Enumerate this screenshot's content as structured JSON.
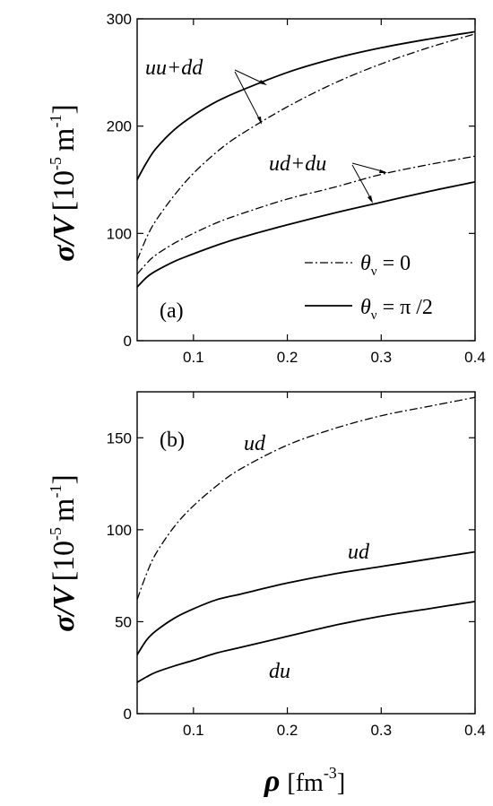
{
  "chart_data": [
    {
      "type": "line",
      "panel_label": "(a)",
      "xlim": [
        0.04,
        0.4
      ],
      "ylim": [
        0,
        300
      ],
      "x_ticks": [
        0.1,
        0.2,
        0.3,
        0.4
      ],
      "x_tick_labels": [
        "0.1",
        "0.2",
        "0.3",
        "0.4"
      ],
      "y_ticks": [
        0,
        100,
        200,
        300
      ],
      "y_tick_labels": [
        "0",
        "100",
        "200",
        "300"
      ],
      "ylabel": {
        "symbol": "σ/V",
        "bracket_open": "[",
        "power10": "10",
        "exp": "-5",
        "unit": "m",
        "unit_exp": "-1",
        "bracket_close": "]"
      },
      "legend": {
        "placement": "lower-right",
        "entries": [
          {
            "symbol": "θ",
            "subscript": "ν",
            "value": " = 0",
            "style": "dash-dot"
          },
          {
            "symbol": "θ",
            "subscript": "ν",
            "value": " = π /2",
            "style": "solid"
          }
        ]
      },
      "annotations": [
        {
          "text": "uu+dd"
        },
        {
          "text": "ud+du"
        }
      ],
      "series": [
        {
          "group": "uu+dd",
          "style": "solid",
          "x": [
            0.04,
            0.05,
            0.06,
            0.08,
            0.1,
            0.125,
            0.15,
            0.2,
            0.25,
            0.3,
            0.35,
            0.4
          ],
          "y": [
            150,
            166,
            179,
            197,
            210,
            223,
            233,
            250,
            263,
            273,
            281,
            288
          ]
        },
        {
          "group": "uu+dd",
          "style": "dash-dot",
          "x": [
            0.04,
            0.05,
            0.06,
            0.08,
            0.1,
            0.125,
            0.15,
            0.2,
            0.25,
            0.3,
            0.35,
            0.4
          ],
          "y": [
            75,
            96,
            112,
            136,
            156,
            176,
            192,
            218,
            240,
            258,
            273,
            286
          ]
        },
        {
          "group": "ud+du",
          "style": "dash-dot",
          "x": [
            0.04,
            0.05,
            0.06,
            0.08,
            0.1,
            0.125,
            0.15,
            0.2,
            0.25,
            0.3,
            0.35,
            0.4
          ],
          "y": [
            62,
            72,
            80,
            91,
            100,
            110,
            118,
            132,
            143,
            155,
            164,
            172
          ]
        },
        {
          "group": "ud+du",
          "style": "solid",
          "x": [
            0.04,
            0.05,
            0.06,
            0.08,
            0.1,
            0.125,
            0.15,
            0.2,
            0.25,
            0.3,
            0.35,
            0.4
          ],
          "y": [
            50,
            59,
            65,
            74,
            81,
            89,
            96,
            108,
            119,
            129,
            139,
            148
          ]
        }
      ]
    },
    {
      "type": "line",
      "panel_label": "(b)",
      "xlim": [
        0.04,
        0.4
      ],
      "ylim": [
        0,
        175
      ],
      "x_ticks": [
        0.1,
        0.2,
        0.3,
        0.4
      ],
      "x_tick_labels": [
        "0.1",
        "0.2",
        "0.3",
        "0.4"
      ],
      "y_ticks": [
        0,
        50,
        100,
        150
      ],
      "y_tick_labels": [
        "0",
        "50",
        "100",
        "150"
      ],
      "ylabel": {
        "symbol": "σ/V",
        "bracket_open": "[",
        "power10": "10",
        "exp": "-5",
        "unit": "m",
        "unit_exp": "-1",
        "bracket_close": "]"
      },
      "xlabel": {
        "symbol": "ρ",
        "bracket_open": "[",
        "unit": "fm",
        "unit_exp": "-3",
        "bracket_close": "]"
      },
      "annotations": [
        {
          "text": "ud"
        },
        {
          "text": "ud"
        },
        {
          "text": "du"
        }
      ],
      "series": [
        {
          "group": "ud",
          "style": "dash-dot",
          "x": [
            0.04,
            0.05,
            0.06,
            0.08,
            0.1,
            0.125,
            0.15,
            0.2,
            0.25,
            0.3,
            0.35,
            0.4
          ],
          "y": [
            62,
            76,
            87,
            102,
            113,
            124,
            133,
            146,
            155,
            162,
            167,
            172
          ]
        },
        {
          "group": "ud",
          "style": "solid",
          "x": [
            0.04,
            0.05,
            0.06,
            0.08,
            0.1,
            0.125,
            0.15,
            0.2,
            0.25,
            0.3,
            0.35,
            0.4
          ],
          "y": [
            32,
            40,
            45,
            52,
            57,
            62,
            65,
            71,
            76,
            80,
            84,
            88
          ]
        },
        {
          "group": "du",
          "style": "solid",
          "x": [
            0.04,
            0.05,
            0.06,
            0.08,
            0.1,
            0.125,
            0.15,
            0.2,
            0.25,
            0.3,
            0.35,
            0.4
          ],
          "y": [
            17,
            20,
            22.5,
            26,
            29,
            33,
            36,
            42,
            48,
            53,
            57,
            61
          ]
        }
      ]
    }
  ]
}
